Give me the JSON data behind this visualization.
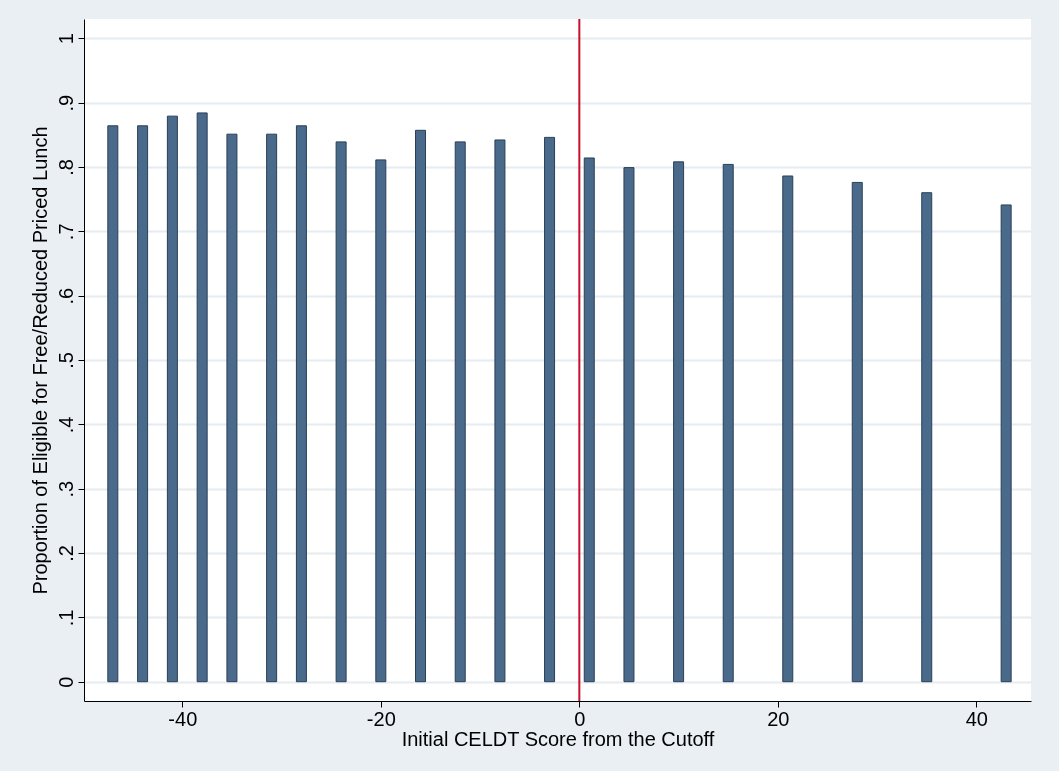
{
  "chart_data": {
    "type": "bar",
    "xlabel": "Initial CELDT Score from the Cutoff",
    "ylabel": "Proportion of Eligible for Free/Reduced Priced Lunch",
    "x": [
      -47,
      -44,
      -41,
      -38,
      -35,
      -31,
      -28,
      -24,
      -20,
      -16,
      -12,
      -8,
      -3,
      1,
      5,
      10,
      15,
      21,
      28,
      35,
      43
    ],
    "values": [
      0.864,
      0.864,
      0.879,
      0.884,
      0.851,
      0.851,
      0.864,
      0.839,
      0.811,
      0.857,
      0.839,
      0.842,
      0.846,
      0.814,
      0.799,
      0.808,
      0.804,
      0.786,
      0.776,
      0.76,
      0.741
    ],
    "color": "#4a6a8c",
    "xlim": [
      -49.4,
      45
    ],
    "ylim": [
      -0.03,
      1.03
    ],
    "xticks": [
      -40,
      -20,
      0,
      20,
      40
    ],
    "yticks": [
      0,
      {
        "value": 0.1,
        "label": ".1"
      },
      {
        "value": 0.2,
        "label": ".2"
      },
      {
        "value": 0.3,
        "label": ".3"
      },
      {
        "value": 0.4,
        "label": ".4"
      },
      {
        "value": 0.5,
        "label": ".5"
      },
      {
        "value": 0.6,
        "label": ".6"
      },
      {
        "value": 0.7,
        "label": ".7"
      },
      {
        "value": 0.8,
        "label": ".8"
      },
      {
        "value": 0.9,
        "label": ".9"
      },
      1
    ],
    "ref_lines": [
      {
        "axis": "x",
        "value": 0,
        "color": "#c8102e"
      }
    ],
    "grid": "y"
  }
}
